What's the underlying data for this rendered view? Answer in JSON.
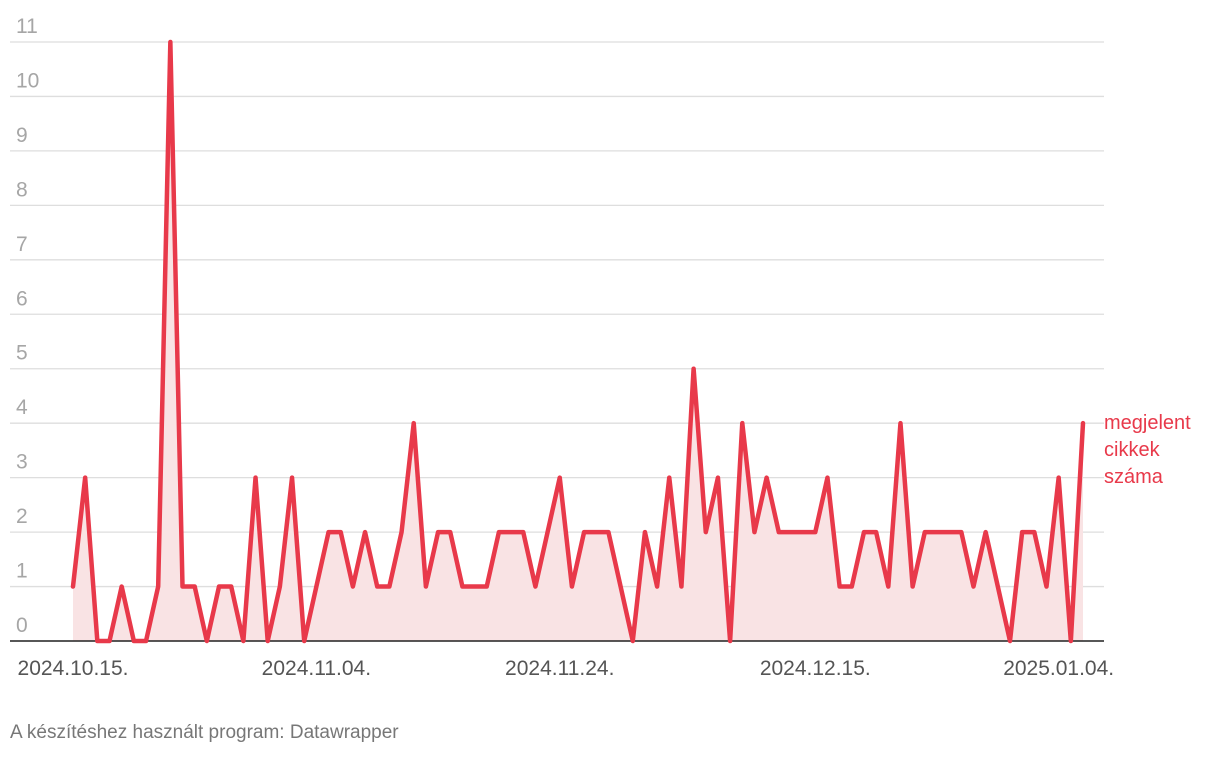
{
  "chart_data": {
    "type": "line",
    "x": [
      "2024.10.15.",
      "2024.10.16.",
      "2024.10.17.",
      "2024.10.18.",
      "2024.10.19.",
      "2024.10.20.",
      "2024.10.21.",
      "2024.10.22.",
      "2024.10.23.",
      "2024.10.24.",
      "2024.10.25.",
      "2024.10.26.",
      "2024.10.27.",
      "2024.10.28.",
      "2024.10.29.",
      "2024.10.30.",
      "2024.10.31.",
      "2024.11.01.",
      "2024.11.02.",
      "2024.11.03.",
      "2024.11.04.",
      "2024.11.05.",
      "2024.11.06.",
      "2024.11.07.",
      "2024.11.08.",
      "2024.11.09.",
      "2024.11.10.",
      "2024.11.11.",
      "2024.11.12.",
      "2024.11.13.",
      "2024.11.14.",
      "2024.11.15.",
      "2024.11.16.",
      "2024.11.17.",
      "2024.11.18.",
      "2024.11.19.",
      "2024.11.20.",
      "2024.11.21.",
      "2024.11.22.",
      "2024.11.23.",
      "2024.11.24.",
      "2024.11.25.",
      "2024.11.26.",
      "2024.11.27.",
      "2024.11.28.",
      "2024.11.29.",
      "2024.11.30.",
      "2024.12.01.",
      "2024.12.02.",
      "2024.12.03.",
      "2024.12.04.",
      "2024.12.05.",
      "2024.12.06.",
      "2024.12.07.",
      "2024.12.08.",
      "2024.12.09.",
      "2024.12.10.",
      "2024.12.11.",
      "2024.12.12.",
      "2024.12.13.",
      "2024.12.14.",
      "2024.12.15.",
      "2024.12.16.",
      "2024.12.17.",
      "2024.12.18.",
      "2024.12.19.",
      "2024.12.20.",
      "2024.12.21.",
      "2024.12.22.",
      "2024.12.23.",
      "2024.12.24.",
      "2024.12.25.",
      "2024.12.26.",
      "2024.12.27.",
      "2024.12.28.",
      "2024.12.29.",
      "2024.12.30.",
      "2024.12.31.",
      "2025.01.01.",
      "2025.01.02.",
      "2025.01.03.",
      "2025.01.04.",
      "2025.01.05.",
      "2025.01.06."
    ],
    "series": [
      {
        "name": "megjelent cikkek száma",
        "color": "#e8394a",
        "area_color": "#f9e3e4",
        "values": [
          1,
          3,
          0,
          0,
          1,
          0,
          0,
          1,
          11,
          1,
          1,
          0,
          1,
          1,
          0,
          3,
          0,
          1,
          3,
          0,
          1,
          2,
          2,
          1,
          2,
          1,
          1,
          2,
          4,
          1,
          2,
          2,
          1,
          1,
          1,
          2,
          2,
          2,
          1,
          2,
          3,
          1,
          2,
          2,
          2,
          1,
          0,
          2,
          1,
          3,
          1,
          5,
          2,
          3,
          0,
          4,
          2,
          3,
          2,
          2,
          2,
          2,
          3,
          1,
          1,
          2,
          2,
          1,
          4,
          1,
          2,
          2,
          2,
          2,
          1,
          2,
          1,
          0,
          2,
          2,
          1,
          3,
          0,
          4
        ]
      }
    ],
    "xticks": [
      "2024.10.15.",
      "2024.11.04.",
      "2024.11.24.",
      "2024.12.15.",
      "2025.01.04."
    ],
    "ylim": [
      0,
      11
    ],
    "yticks": [
      0,
      1,
      2,
      3,
      4,
      5,
      6,
      7,
      8,
      9,
      10,
      11
    ],
    "grid": true
  },
  "footer": "A készítéshez használt program: Datawrapper"
}
